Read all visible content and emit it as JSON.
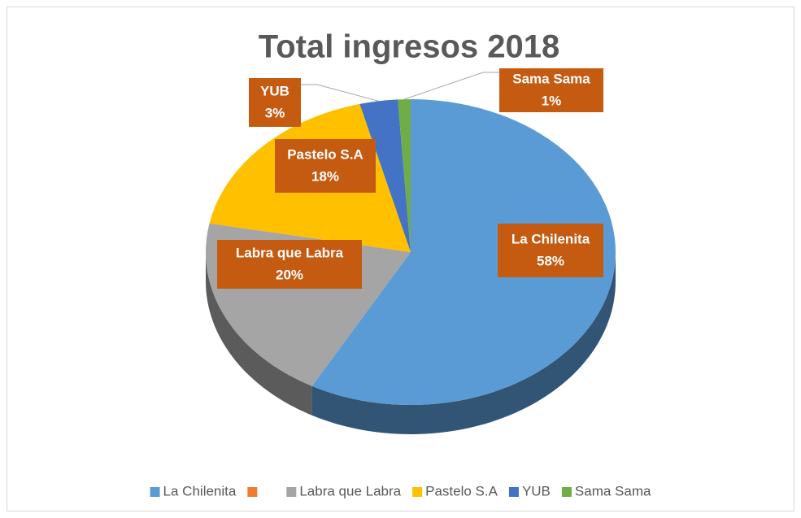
{
  "chart_data": {
    "type": "pie",
    "title": "Total ingresos 2018",
    "categories": [
      "La Chilenita",
      null,
      "Labra que Labra",
      "Pastelo S.A",
      "YUB",
      "Sama Sama"
    ],
    "values": [
      58,
      0,
      20,
      18,
      3,
      1
    ],
    "value_labels": [
      "58%",
      null,
      "20%",
      "18%",
      "3%",
      "1%"
    ],
    "colors": [
      "#5b9bd5",
      "#ed7d31",
      "#a5a5a5",
      "#ffc000",
      "#4472c4",
      "#70ad47"
    ],
    "legend": "bottom"
  }
}
